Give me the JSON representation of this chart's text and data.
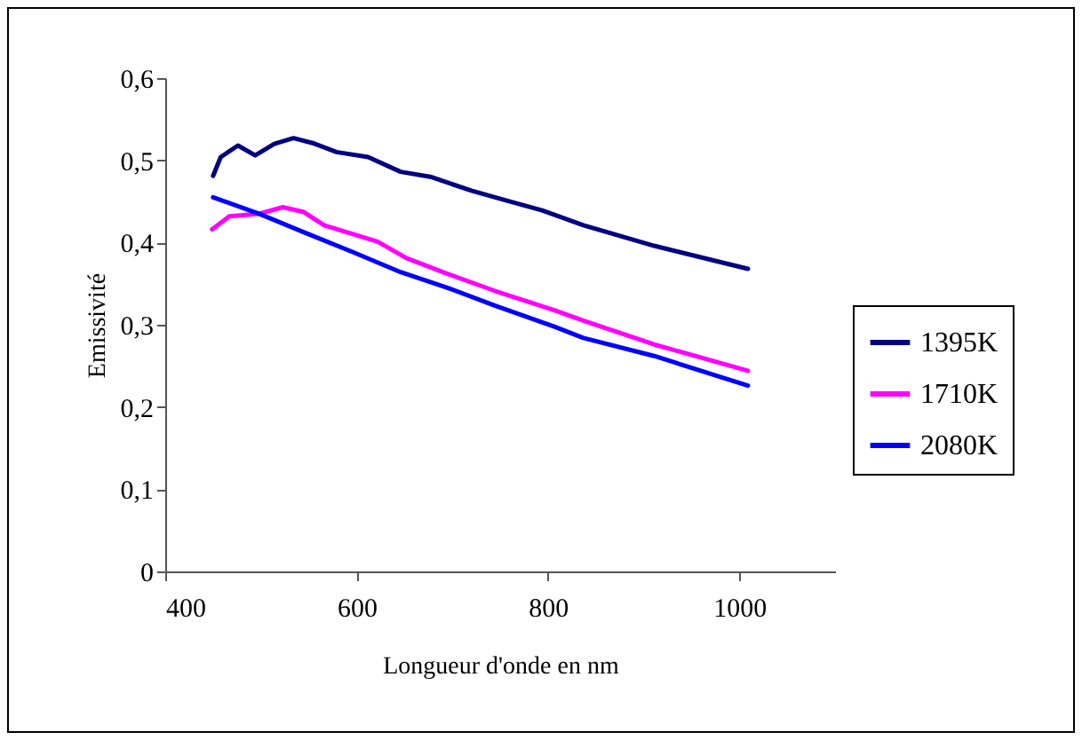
{
  "chart_data": {
    "type": "line",
    "xlabel": "Longueur d'onde en nm",
    "ylabel": "Emissivité",
    "xlim": [
      400,
      1100
    ],
    "xticks": [
      400,
      600,
      800,
      1000
    ],
    "ylim": [
      0,
      0.6
    ],
    "yticks": [
      0,
      {
        "value": 0.1,
        "label": "0,1"
      },
      {
        "value": 0.2,
        "label": "0,2"
      },
      {
        "value": 0.3,
        "label": "0,3"
      },
      {
        "value": 0.4,
        "label": "0,4"
      },
      {
        "value": 0.5,
        "label": "0,5"
      },
      {
        "value": 0.6,
        "label": "0,6"
      }
    ],
    "grid": false,
    "legend": "right",
    "series": [
      {
        "name": "1395K",
        "color": "#000080",
        "x": [
          450,
          458,
          476,
          494,
          514,
          534,
          554,
          579,
          612,
          646,
          677,
          720,
          757,
          794,
          837,
          911,
          1009
        ],
        "values": [
          0.481,
          0.504,
          0.518,
          0.506,
          0.52,
          0.527,
          0.521,
          0.51,
          0.504,
          0.486,
          0.48,
          0.463,
          0.451,
          0.439,
          0.421,
          0.396,
          0.368
        ]
      },
      {
        "name": "1710K",
        "color": "#ff00ff",
        "x": [
          449,
          467,
          498,
          523,
          545,
          566,
          591,
          622,
          652,
          695,
          745,
          806,
          837,
          911,
          1009
        ],
        "values": [
          0.416,
          0.432,
          0.435,
          0.443,
          0.437,
          0.421,
          0.412,
          0.401,
          0.381,
          0.362,
          0.341,
          0.318,
          0.305,
          0.276,
          0.244
        ]
      },
      {
        "name": "2080K",
        "color": "#0000ff",
        "x": [
          450,
          498,
          548,
          597,
          646,
          695,
          745,
          806,
          837,
          911,
          1009
        ],
        "values": [
          0.455,
          0.435,
          0.411,
          0.388,
          0.364,
          0.345,
          0.323,
          0.298,
          0.284,
          0.262,
          0.226
        ]
      }
    ]
  }
}
